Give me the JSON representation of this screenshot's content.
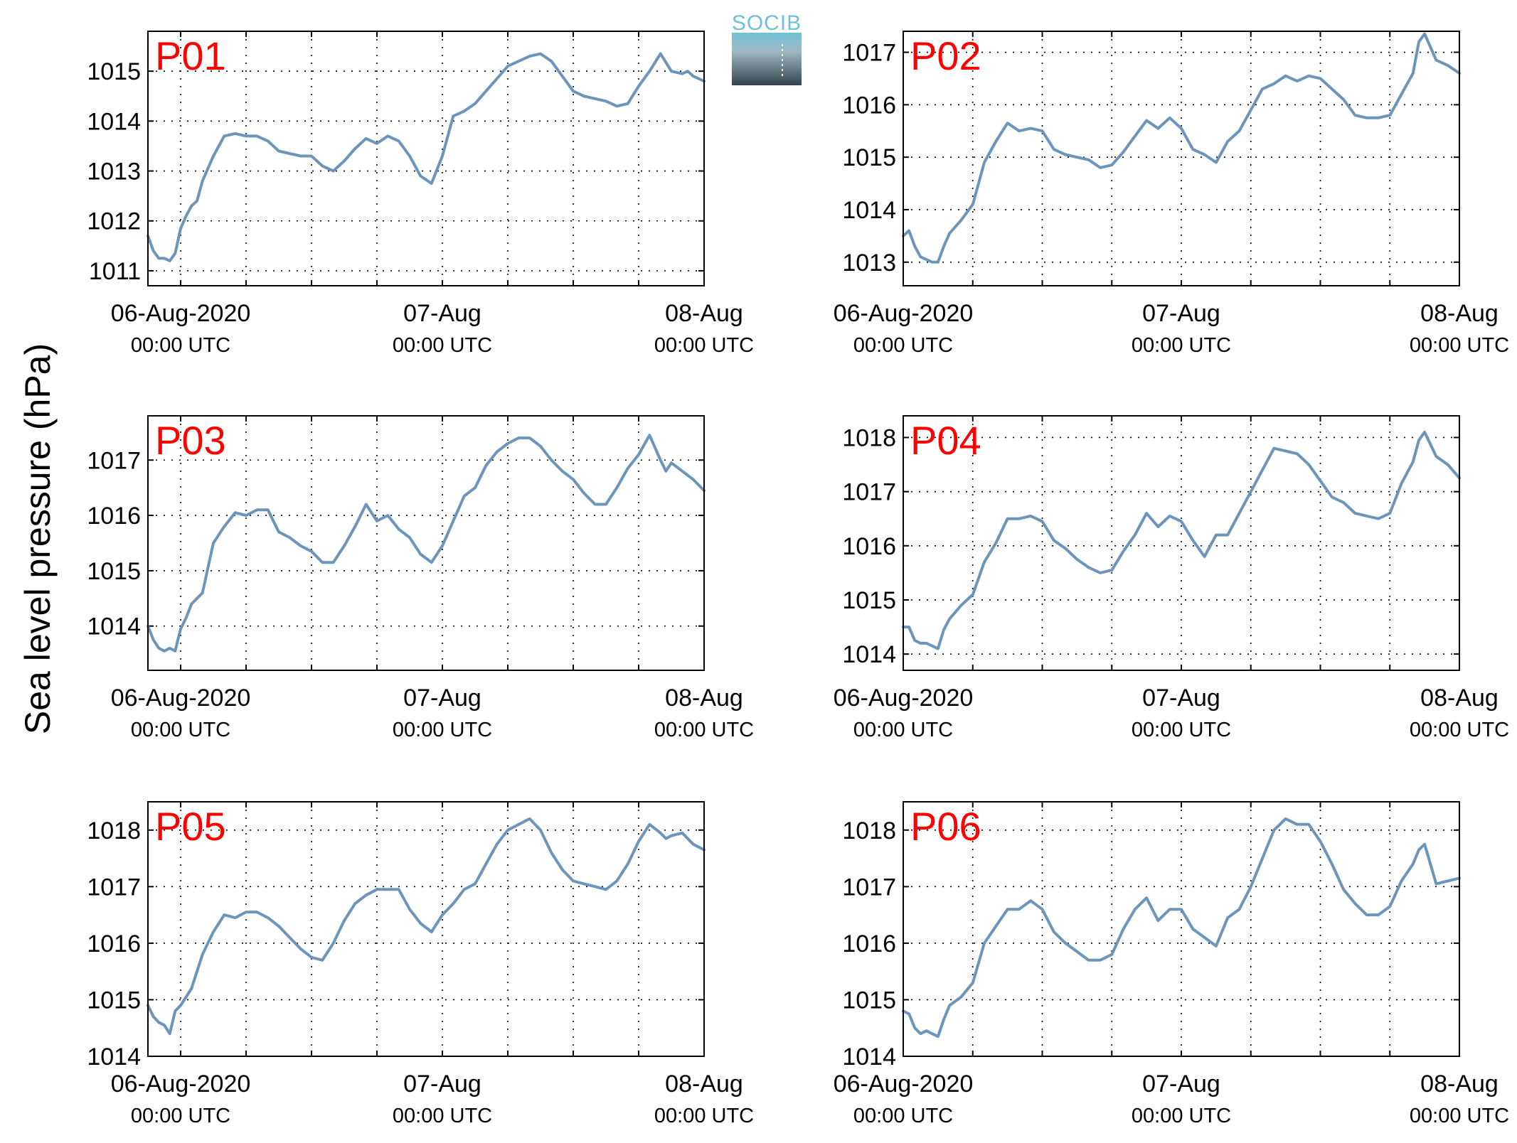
{
  "figure": {
    "ylabel": "Sea level pressure (hPa)",
    "logo_text": "SOCIB",
    "colors": {
      "line": "#6b95bb",
      "panel_label": "#ff0000",
      "logo_top": "#6ec1d6",
      "logo_bottom": "#33434b"
    }
  },
  "chart_data": [
    {
      "type": "line",
      "title": "P01",
      "xlabel": "",
      "ylabel": "Sea level pressure (hPa)",
      "x_unit": "hours since 06-Aug-2020 00:00 UTC",
      "xlim": [
        -3,
        48
      ],
      "ylim": [
        1010.7,
        1015.8
      ],
      "yticks": [
        "1011",
        "1012",
        "1013",
        "1014",
        "1015"
      ],
      "xticks": [
        {
          "x": 0,
          "label": "06-Aug-2020",
          "sub": "00:00 UTC"
        },
        {
          "x": 24,
          "label": "07-Aug",
          "sub": "00:00 UTC"
        },
        {
          "x": 48,
          "label": "08-Aug",
          "sub": "00:00 UTC"
        }
      ],
      "grid": true,
      "series": [
        {
          "x": [
            -3,
            -2.5,
            -2,
            -1.5,
            -1,
            -0.5,
            0,
            0.5,
            1,
            1.5,
            2,
            3,
            4,
            5,
            6,
            7,
            8,
            9,
            10,
            11,
            12,
            13,
            14,
            15,
            16,
            17,
            18,
            19,
            20,
            21,
            22,
            23,
            24,
            25,
            26,
            27,
            28,
            29,
            30,
            31,
            32,
            33,
            34,
            35,
            36,
            37,
            38,
            39,
            40,
            41,
            42,
            43,
            44,
            45,
            46,
            46.5,
            47,
            48
          ],
          "y": [
            1011.7,
            1011.4,
            1011.25,
            1011.25,
            1011.2,
            1011.35,
            1011.85,
            1012.1,
            1012.3,
            1012.4,
            1012.8,
            1013.3,
            1013.7,
            1013.75,
            1013.7,
            1013.7,
            1013.6,
            1013.4,
            1013.35,
            1013.3,
            1013.3,
            1013.1,
            1013.0,
            1013.2,
            1013.45,
            1013.65,
            1013.55,
            1013.7,
            1013.6,
            1013.3,
            1012.9,
            1012.75,
            1013.3,
            1014.1,
            1014.2,
            1014.35,
            1014.6,
            1014.85,
            1015.1,
            1015.2,
            1015.3,
            1015.35,
            1015.2,
            1014.9,
            1014.6,
            1014.5,
            1014.45,
            1014.4,
            1014.3,
            1014.35,
            1014.7,
            1015.0,
            1015.35,
            1015.0,
            1014.95,
            1015.0,
            1014.9,
            1014.8
          ]
        }
      ]
    },
    {
      "type": "line",
      "title": "P02",
      "xlabel": "",
      "ylabel": "Sea level pressure (hPa)",
      "x_unit": "hours since 06-Aug-2020 00:00 UTC",
      "xlim": [
        0,
        48
      ],
      "ylim": [
        1012.55,
        1017.4
      ],
      "yticks": [
        "1013",
        "1014",
        "1015",
        "1016",
        "1017"
      ],
      "xticks": [
        {
          "x": 0,
          "label": "06-Aug-2020",
          "sub": "00:00 UTC"
        },
        {
          "x": 24,
          "label": "07-Aug",
          "sub": "00:00 UTC"
        },
        {
          "x": 48,
          "label": "08-Aug",
          "sub": "00:00 UTC"
        }
      ],
      "grid": true,
      "series": [
        {
          "x": [
            0,
            0.5,
            1,
            1.5,
            2,
            2.5,
            3,
            3.5,
            4,
            5,
            6,
            7,
            8,
            9,
            10,
            11,
            12,
            13,
            14,
            15,
            16,
            17,
            18,
            19,
            20,
            21,
            22,
            23,
            24,
            25,
            26,
            27,
            28,
            29,
            30,
            31,
            32,
            33,
            34,
            35,
            36,
            37,
            38,
            39,
            40,
            41,
            42,
            43,
            44,
            44.5,
            45,
            46,
            47,
            48
          ],
          "y": [
            1013.5,
            1013.6,
            1013.3,
            1013.1,
            1013.05,
            1013.0,
            1013.0,
            1013.3,
            1013.55,
            1013.8,
            1014.1,
            1014.9,
            1015.3,
            1015.65,
            1015.5,
            1015.55,
            1015.5,
            1015.15,
            1015.05,
            1015.0,
            1014.95,
            1014.8,
            1014.85,
            1015.1,
            1015.4,
            1015.7,
            1015.55,
            1015.75,
            1015.55,
            1015.15,
            1015.05,
            1014.9,
            1015.3,
            1015.5,
            1015.9,
            1016.3,
            1016.4,
            1016.55,
            1016.45,
            1016.55,
            1016.5,
            1016.3,
            1016.1,
            1015.8,
            1015.75,
            1015.75,
            1015.8,
            1016.2,
            1016.6,
            1017.2,
            1017.35,
            1016.85,
            1016.75,
            1016.6
          ]
        }
      ]
    },
    {
      "type": "line",
      "title": "P03",
      "xlabel": "",
      "ylabel": "Sea level pressure (hPa)",
      "x_unit": "hours since 06-Aug-2020 00:00 UTC",
      "xlim": [
        -3,
        48
      ],
      "ylim": [
        1013.2,
        1017.8
      ],
      "yticks": [
        "1014",
        "1015",
        "1016",
        "1017"
      ],
      "xticks": [
        {
          "x": 0,
          "label": "06-Aug-2020",
          "sub": "00:00 UTC"
        },
        {
          "x": 24,
          "label": "07-Aug",
          "sub": "00:00 UTC"
        },
        {
          "x": 48,
          "label": "08-Aug",
          "sub": "00:00 UTC"
        }
      ],
      "grid": true,
      "series": [
        {
          "x": [
            -3,
            -2.5,
            -2,
            -1.5,
            -1,
            -0.5,
            0,
            0.5,
            1,
            2,
            3,
            4,
            5,
            6,
            7,
            8,
            9,
            10,
            11,
            12,
            13,
            14,
            15,
            16,
            17,
            18,
            19,
            20,
            21,
            22,
            23,
            24,
            25,
            26,
            27,
            28,
            29,
            30,
            31,
            32,
            33,
            34,
            35,
            36,
            37,
            38,
            39,
            40,
            41,
            42,
            43,
            44,
            44.5,
            45,
            46,
            47,
            48
          ],
          "y": [
            1014.0,
            1013.75,
            1013.6,
            1013.55,
            1013.6,
            1013.55,
            1013.95,
            1014.15,
            1014.4,
            1014.6,
            1015.5,
            1015.8,
            1016.05,
            1016.0,
            1016.1,
            1016.1,
            1015.7,
            1015.6,
            1015.45,
            1015.35,
            1015.15,
            1015.15,
            1015.45,
            1015.8,
            1016.2,
            1015.9,
            1016.0,
            1015.75,
            1015.6,
            1015.3,
            1015.15,
            1015.45,
            1015.9,
            1016.35,
            1016.5,
            1016.9,
            1017.15,
            1017.3,
            1017.4,
            1017.4,
            1017.25,
            1017.0,
            1016.8,
            1016.65,
            1016.4,
            1016.2,
            1016.2,
            1016.5,
            1016.85,
            1017.1,
            1017.45,
            1017.0,
            1016.8,
            1016.95,
            1016.8,
            1016.65,
            1016.45
          ]
        }
      ]
    },
    {
      "type": "line",
      "title": "P04",
      "xlabel": "",
      "ylabel": "Sea level pressure (hPa)",
      "x_unit": "hours since 06-Aug-2020 00:00 UTC",
      "xlim": [
        0,
        48
      ],
      "ylim": [
        1013.7,
        1018.4
      ],
      "yticks": [
        "1014",
        "1015",
        "1016",
        "1017",
        "1018"
      ],
      "xticks": [
        {
          "x": 0,
          "label": "06-Aug-2020",
          "sub": "00:00 UTC"
        },
        {
          "x": 24,
          "label": "07-Aug",
          "sub": "00:00 UTC"
        },
        {
          "x": 48,
          "label": "08-Aug",
          "sub": "00:00 UTC"
        }
      ],
      "grid": true,
      "series": [
        {
          "x": [
            0,
            0.5,
            1,
            1.5,
            2,
            2.5,
            3,
            3.5,
            4,
            5,
            6,
            7,
            8,
            9,
            10,
            11,
            12,
            13,
            14,
            15,
            16,
            17,
            18,
            19,
            20,
            21,
            22,
            23,
            24,
            25,
            26,
            27,
            28,
            29,
            30,
            31,
            32,
            33,
            34,
            35,
            36,
            37,
            38,
            39,
            40,
            41,
            42,
            43,
            44,
            44.5,
            45,
            46,
            47,
            48
          ],
          "y": [
            1014.5,
            1014.5,
            1014.25,
            1014.2,
            1014.2,
            1014.15,
            1014.1,
            1014.45,
            1014.65,
            1014.9,
            1015.1,
            1015.7,
            1016.05,
            1016.5,
            1016.5,
            1016.55,
            1016.45,
            1016.1,
            1015.95,
            1015.75,
            1015.6,
            1015.5,
            1015.55,
            1015.9,
            1016.2,
            1016.6,
            1016.35,
            1016.55,
            1016.45,
            1016.1,
            1015.8,
            1016.2,
            1016.2,
            1016.6,
            1017.0,
            1017.4,
            1017.8,
            1017.75,
            1017.7,
            1017.5,
            1017.2,
            1016.9,
            1016.8,
            1016.6,
            1016.55,
            1016.5,
            1016.6,
            1017.15,
            1017.55,
            1017.95,
            1018.1,
            1017.65,
            1017.5,
            1017.25
          ]
        }
      ]
    },
    {
      "type": "line",
      "title": "P05",
      "xlabel": "",
      "ylabel": "Sea level pressure (hPa)",
      "x_unit": "hours since 06-Aug-2020 00:00 UTC",
      "xlim": [
        -3,
        48
      ],
      "ylim": [
        1014.0,
        1018.5
      ],
      "yticks": [
        "1014",
        "1015",
        "1016",
        "1017",
        "1018"
      ],
      "xticks": [
        {
          "x": 0,
          "label": "06-Aug-2020",
          "sub": "00:00 UTC"
        },
        {
          "x": 24,
          "label": "07-Aug",
          "sub": "00:00 UTC"
        },
        {
          "x": 48,
          "label": "08-Aug",
          "sub": "00:00 UTC"
        }
      ],
      "grid": true,
      "series": [
        {
          "x": [
            -3,
            -2.5,
            -2,
            -1.5,
            -1,
            -0.5,
            0,
            0.5,
            1,
            2,
            3,
            4,
            5,
            6,
            7,
            8,
            9,
            10,
            11,
            12,
            13,
            14,
            15,
            16,
            17,
            18,
            19,
            20,
            21,
            22,
            23,
            24,
            25,
            26,
            27,
            28,
            29,
            30,
            31,
            32,
            33,
            34,
            35,
            36,
            37,
            38,
            39,
            40,
            41,
            42,
            43,
            44,
            44.5,
            45,
            46,
            47,
            48
          ],
          "y": [
            1014.9,
            1014.7,
            1014.6,
            1014.55,
            1014.4,
            1014.8,
            1014.9,
            1015.05,
            1015.2,
            1015.8,
            1016.2,
            1016.5,
            1016.45,
            1016.55,
            1016.55,
            1016.45,
            1016.3,
            1016.1,
            1015.9,
            1015.75,
            1015.7,
            1016.0,
            1016.4,
            1016.7,
            1016.85,
            1016.95,
            1016.95,
            1016.95,
            1016.6,
            1016.35,
            1016.2,
            1016.5,
            1016.7,
            1016.95,
            1017.05,
            1017.4,
            1017.75,
            1018.0,
            1018.1,
            1018.2,
            1018.0,
            1017.6,
            1017.3,
            1017.1,
            1017.05,
            1017.0,
            1016.95,
            1017.1,
            1017.4,
            1017.8,
            1018.1,
            1017.95,
            1017.85,
            1017.9,
            1017.95,
            1017.75,
            1017.65
          ]
        }
      ]
    },
    {
      "type": "line",
      "title": "P06",
      "xlabel": "",
      "ylabel": "Sea level pressure (hPa)",
      "x_unit": "hours since 06-Aug-2020 00:00 UTC",
      "xlim": [
        0,
        48
      ],
      "ylim": [
        1014.0,
        1018.5
      ],
      "yticks": [
        "1014",
        "1015",
        "1016",
        "1017",
        "1018"
      ],
      "xticks": [
        {
          "x": 0,
          "label": "06-Aug-2020",
          "sub": "00:00 UTC"
        },
        {
          "x": 24,
          "label": "07-Aug",
          "sub": "00:00 UTC"
        },
        {
          "x": 48,
          "label": "08-Aug",
          "sub": "00:00 UTC"
        }
      ],
      "grid": true,
      "series": [
        {
          "x": [
            0,
            0.5,
            1,
            1.5,
            2,
            2.5,
            3,
            3.5,
            4,
            5,
            6,
            7,
            8,
            9,
            10,
            11,
            12,
            13,
            14,
            15,
            16,
            17,
            18,
            19,
            20,
            21,
            22,
            23,
            24,
            25,
            26,
            27,
            28,
            29,
            30,
            31,
            32,
            33,
            34,
            35,
            36,
            37,
            38,
            39,
            40,
            41,
            42,
            43,
            44,
            44.5,
            45,
            46,
            47,
            48
          ],
          "y": [
            1014.8,
            1014.75,
            1014.5,
            1014.4,
            1014.45,
            1014.4,
            1014.35,
            1014.65,
            1014.9,
            1015.05,
            1015.3,
            1016.0,
            1016.3,
            1016.6,
            1016.6,
            1016.75,
            1016.6,
            1016.2,
            1016.0,
            1015.85,
            1015.7,
            1015.7,
            1015.8,
            1016.25,
            1016.6,
            1016.8,
            1016.4,
            1016.6,
            1016.6,
            1016.25,
            1016.1,
            1015.95,
            1016.45,
            1016.6,
            1017.0,
            1017.5,
            1018.0,
            1018.2,
            1018.1,
            1018.1,
            1017.8,
            1017.4,
            1016.95,
            1016.7,
            1016.5,
            1016.5,
            1016.65,
            1017.1,
            1017.4,
            1017.65,
            1017.75,
            1017.05,
            1017.1,
            1017.15
          ]
        }
      ]
    }
  ]
}
